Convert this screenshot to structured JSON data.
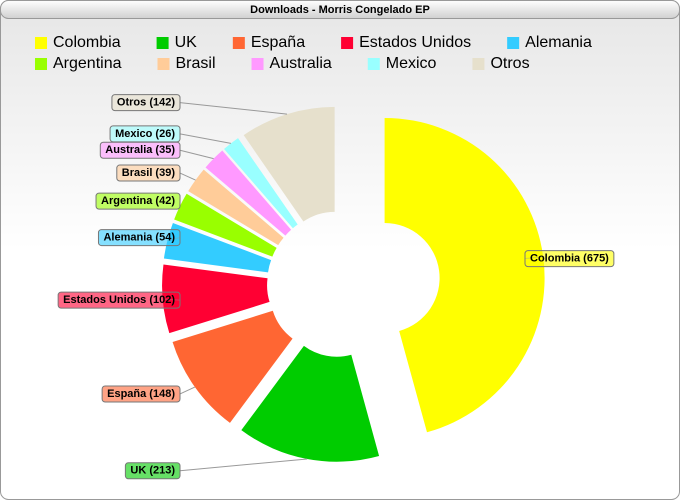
{
  "chart_data": {
    "type": "donut",
    "title": "Downloads - Morris Congelado EP",
    "categories": [
      "Colombia",
      "UK",
      "España",
      "Estados Unidos",
      "Alemania",
      "Argentina",
      "Brasil",
      "Australia",
      "Mexico",
      "Otros"
    ],
    "values": [
      675,
      213,
      148,
      102,
      54,
      42,
      39,
      35,
      26,
      142
    ],
    "value_labels": [
      "Colombia (675)",
      "UK (213)",
      "España (148)",
      "Estados Unidos (102)",
      "Alemania (54)",
      "Argentina (42)",
      "Brasil (39)",
      "Australia (35)",
      "Mexico (26)",
      "Otros (142)"
    ],
    "colors": [
      "#ffff00",
      "#00cc00",
      "#ff6633",
      "#ff0033",
      "#33ccff",
      "#99ff00",
      "#ffcc99",
      "#ff99ff",
      "#99ffff",
      "#e6e0cc"
    ]
  }
}
